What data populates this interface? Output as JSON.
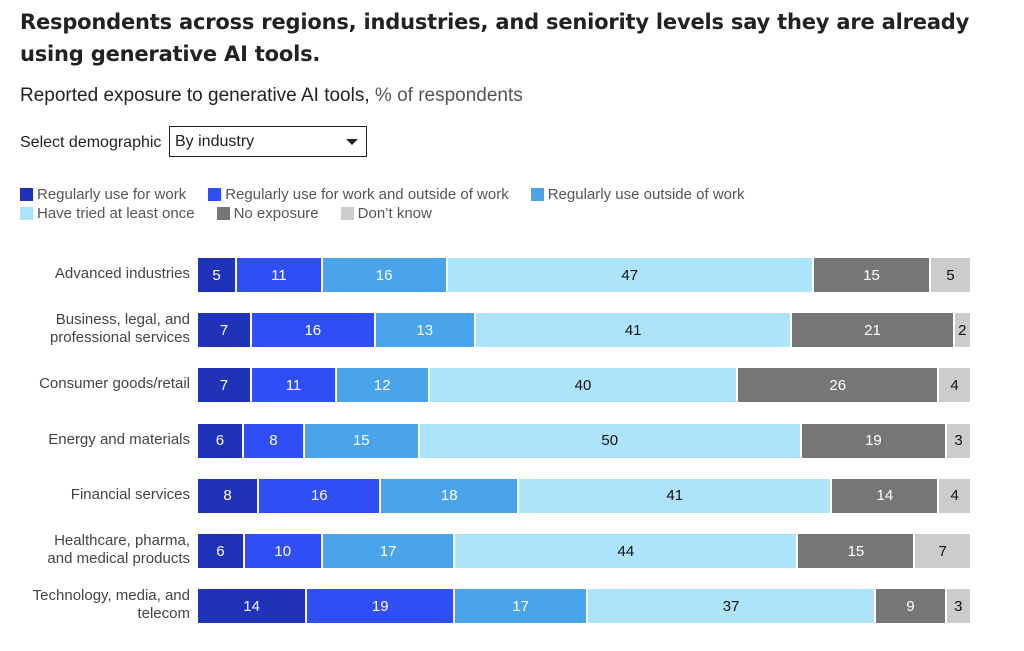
{
  "title": "Respondents across regions, industries, and seniority levels say they are already using generative AI tools.",
  "subtitle": "Reported exposure to generative AI tools,",
  "subtitle_unit": "% of respondents",
  "select": {
    "label": "Select demographic",
    "value": "By industry"
  },
  "chart_data": {
    "type": "bar",
    "orientation": "horizontal",
    "stacked": true,
    "legend_position": "top",
    "categories": [
      "Advanced industries",
      "Business, legal, and professional services",
      "Consumer goods/retail",
      "Energy and materials",
      "Financial services",
      "Healthcare, pharma, and medical products",
      "Technology, media, and telecom"
    ],
    "category_lines": [
      [
        "Advanced industries"
      ],
      [
        "Business, legal, and",
        "professional services"
      ],
      [
        "Consumer goods/retail"
      ],
      [
        "Energy and materials"
      ],
      [
        "Financial services"
      ],
      [
        "Healthcare, pharma,",
        "and medical products"
      ],
      [
        "Technology, media, and",
        "telecom"
      ]
    ],
    "series": [
      {
        "name": "Regularly use for work",
        "color": "#1f33b8",
        "text_color": "#ffffff",
        "values": [
          5,
          7,
          7,
          6,
          8,
          6,
          14
        ]
      },
      {
        "name": "Regularly use for work and outside of work",
        "color": "#2f4ef5",
        "text_color": "#ffffff",
        "values": [
          11,
          16,
          11,
          8,
          16,
          10,
          19
        ]
      },
      {
        "name": "Regularly use outside of work",
        "color": "#4aa4ec",
        "text_color": "#ffffff",
        "values": [
          16,
          13,
          12,
          15,
          18,
          17,
          17
        ]
      },
      {
        "name": "Have tried at least once",
        "color": "#ade4fc",
        "text_color": "#111111",
        "values": [
          47,
          41,
          40,
          50,
          41,
          44,
          37
        ]
      },
      {
        "name": "No exposure",
        "color": "#767676",
        "text_color": "#ffffff",
        "values": [
          15,
          21,
          26,
          19,
          14,
          15,
          9
        ]
      },
      {
        "name": "Don’t know",
        "color": "#cccccc",
        "text_color": "#111111",
        "values": [
          5,
          2,
          4,
          3,
          4,
          7,
          3
        ]
      }
    ]
  }
}
